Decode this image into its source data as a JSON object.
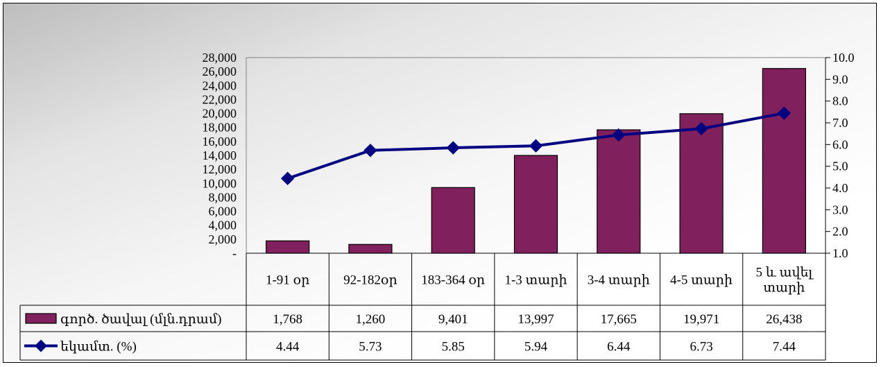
{
  "chart_data": {
    "type": "bar",
    "categories": [
      "1-91 օր",
      "92-182օր",
      "183-364 օր",
      "1-3 տարի",
      "3-4 տարի",
      "4-5 տարի",
      "5 և ավել տարի"
    ],
    "category_lines": [
      [
        "1-91 օր"
      ],
      [
        "92-182օր"
      ],
      [
        "183-364 օր"
      ],
      [
        "1-3 տարի"
      ],
      [
        "3-4 տարի"
      ],
      [
        "4-5 տարի"
      ],
      [
        "5 և ավել",
        "տարի"
      ]
    ],
    "series": [
      {
        "name": "գործ. ծավալ (մլն.դրամ)",
        "type": "bar",
        "axis": "left",
        "values": [
          1768,
          1260,
          9401,
          13997,
          17665,
          19971,
          26438
        ],
        "labels": [
          "1,768",
          "1,260",
          "9,401",
          "13,997",
          "17,665",
          "19,971",
          "26,438"
        ],
        "color": "#80205c"
      },
      {
        "name": "եկամտ. (%)",
        "type": "line",
        "axis": "right",
        "values": [
          4.44,
          5.73,
          5.85,
          5.94,
          6.44,
          6.73,
          7.44
        ],
        "labels": [
          "4.44",
          "5.73",
          "5.85",
          "5.94",
          "6.44",
          "6.73",
          "7.44"
        ],
        "color": "#000080"
      }
    ],
    "y_left": {
      "range": [
        0,
        28000
      ],
      "ticks": [
        0,
        2000,
        4000,
        6000,
        8000,
        10000,
        12000,
        14000,
        16000,
        18000,
        20000,
        22000,
        24000,
        26000,
        28000
      ],
      "tick_labels": [
        "-",
        "2,000",
        "4,000",
        "6,000",
        "8,000",
        "10,000",
        "12,000",
        "14,000",
        "16,000",
        "18,000",
        "20,000",
        "22,000",
        "24,000",
        "26,000",
        "28,000"
      ]
    },
    "y_right": {
      "range": [
        1.0,
        10.0
      ],
      "ticks": [
        1,
        2,
        3,
        4,
        5,
        6,
        7,
        8,
        9,
        10
      ],
      "tick_labels": [
        "1.0",
        "2.0",
        "3.0",
        "4.0",
        "5.0",
        "6.0",
        "7.0",
        "8.0",
        "9.0",
        "10.0"
      ]
    },
    "grid": false,
    "legend": "data-table"
  }
}
